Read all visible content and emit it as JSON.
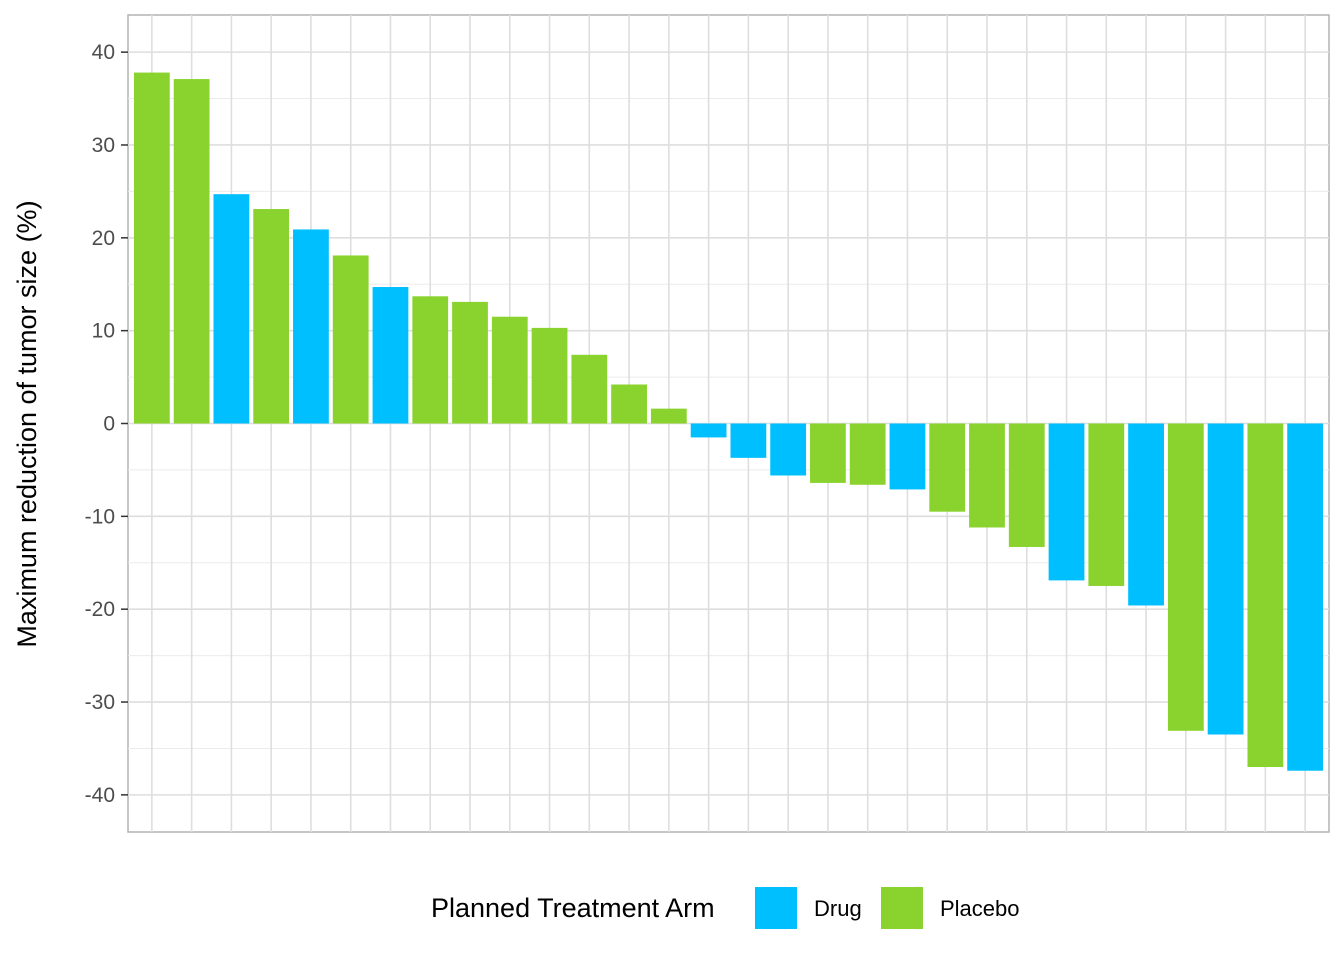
{
  "chart_data": {
    "type": "bar",
    "title": "",
    "xlabel": "",
    "ylabel": "Maximum reduction of tumor size (%)",
    "ylim": [
      -44,
      44
    ],
    "yticks": [
      40,
      30,
      20,
      10,
      0,
      -10,
      -20,
      -30,
      -40
    ],
    "ytick_labels": [
      "40",
      "30",
      "20",
      "10",
      "0",
      "-10",
      "-20",
      "-30",
      "-40"
    ],
    "grid": true,
    "legend": {
      "title": "Planned Treatment Arm",
      "position": "bottom",
      "entries": [
        {
          "label": "Drug",
          "color": "#00BFFF"
        },
        {
          "label": "Placebo",
          "color": "#8AD32E"
        }
      ]
    },
    "values": [
      37.8,
      37.1,
      24.7,
      23.1,
      20.9,
      18.1,
      14.7,
      13.7,
      13.1,
      11.5,
      10.3,
      7.4,
      4.2,
      1.6,
      -1.5,
      -3.7,
      -5.6,
      -6.4,
      -6.6,
      -7.1,
      -9.5,
      -11.2,
      -13.3,
      -16.9,
      -17.5,
      -19.6,
      -33.1,
      -33.5,
      -37.0,
      -37.4
    ],
    "groups": [
      "Placebo",
      "Placebo",
      "Drug",
      "Placebo",
      "Drug",
      "Placebo",
      "Drug",
      "Placebo",
      "Placebo",
      "Placebo",
      "Placebo",
      "Placebo",
      "Placebo",
      "Placebo",
      "Drug",
      "Drug",
      "Drug",
      "Placebo",
      "Placebo",
      "Drug",
      "Placebo",
      "Placebo",
      "Placebo",
      "Drug",
      "Placebo",
      "Drug",
      "Placebo",
      "Drug",
      "Placebo",
      "Drug"
    ]
  }
}
